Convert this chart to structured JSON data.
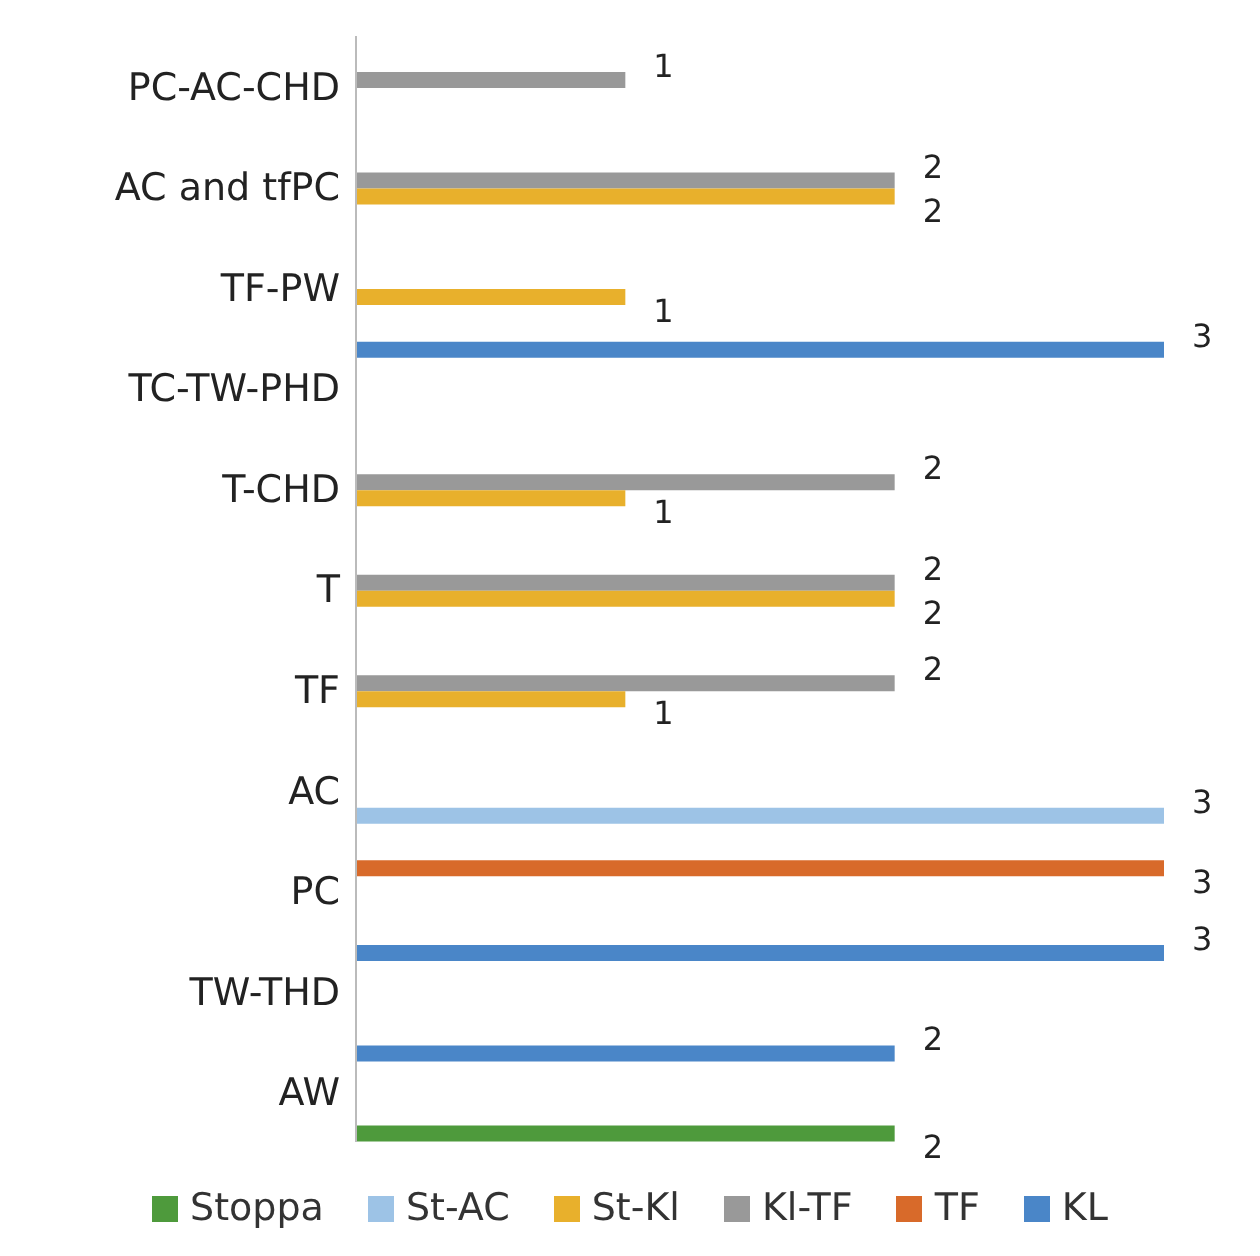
{
  "chart_data": {
    "type": "bar",
    "orientation": "horizontal",
    "categories": [
      "PC-AC-CHD",
      "AC and tfPC",
      "TF-PW",
      "TC-TW-PHD",
      "T-CHD",
      "T",
      "TF",
      "AC",
      "PC",
      "TW-THD",
      "AW"
    ],
    "series": [
      {
        "name": "Stoppa",
        "color": "#4e9a3c",
        "values": [
          null,
          null,
          null,
          null,
          null,
          null,
          null,
          null,
          null,
          null,
          2
        ]
      },
      {
        "name": "St-AC",
        "color": "#9dc3e6",
        "values": [
          null,
          null,
          null,
          null,
          null,
          null,
          null,
          3,
          null,
          null,
          null
        ]
      },
      {
        "name": "St-Kl",
        "color": "#e8b02c",
        "values": [
          null,
          2,
          1,
          null,
          1,
          2,
          1,
          null,
          null,
          null,
          null
        ]
      },
      {
        "name": "Kl-TF",
        "color": "#999999",
        "values": [
          1,
          2,
          null,
          null,
          2,
          2,
          2,
          null,
          null,
          null,
          null
        ]
      },
      {
        "name": "TF",
        "color": "#d86a2a",
        "values": [
          null,
          null,
          null,
          null,
          null,
          null,
          null,
          null,
          3,
          null,
          null
        ]
      },
      {
        "name": "KL",
        "color": "#4a86c8",
        "values": [
          null,
          null,
          null,
          3,
          null,
          null,
          null,
          null,
          null,
          3,
          2
        ]
      }
    ],
    "data_labels": true,
    "legend": "bottom",
    "grid": false
  }
}
